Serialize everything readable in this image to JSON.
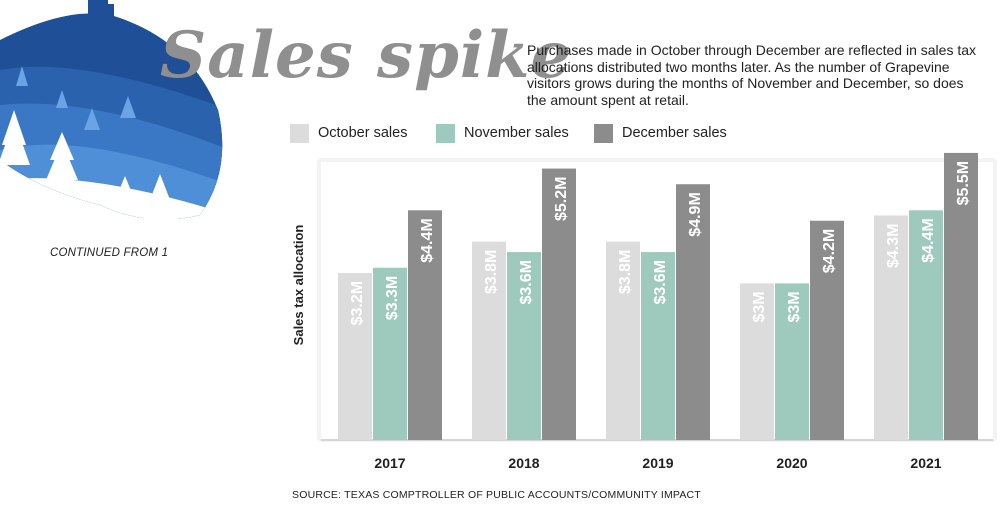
{
  "title": "Sales spike",
  "description": "Purchases made in October through December are reflected in sales tax allocations distributed two months later. As the number of Grapevine visitors grows during the months of November and December, so does the amount spent at retail.",
  "continued": "CONTINUED FROM 1",
  "source": "SOURCE: TEXAS COMPTROLLER OF PUBLIC ACCOUNTS/COMMUNITY IMPACT",
  "colors": {
    "october": "#dcdcdc",
    "november": "#9ec9bd",
    "december": "#8c8c8c",
    "ornament_dark": "#1f4f96",
    "ornament_light": "#3a78c6"
  },
  "chart_data": {
    "type": "bar",
    "categories": [
      "2017",
      "2018",
      "2019",
      "2020",
      "2021"
    ],
    "series": [
      {
        "name": "October sales",
        "values": [
          3.2,
          3.8,
          3.8,
          3.0,
          4.3
        ],
        "labels": [
          "$3.2M",
          "$3.8M",
          "$3.8M",
          "$3M",
          "$4.3M"
        ]
      },
      {
        "name": "November sales",
        "values": [
          3.3,
          3.6,
          3.6,
          3.0,
          4.4
        ],
        "labels": [
          "$3.3M",
          "$3.6M",
          "$3.6M",
          "$3M",
          "$4.4M"
        ]
      },
      {
        "name": "December sales",
        "values": [
          4.4,
          5.2,
          4.9,
          4.2,
          5.5
        ],
        "labels": [
          "$4.4M",
          "$5.2M",
          "$4.9M",
          "$4.2M",
          "$5.5M"
        ]
      }
    ],
    "ylabel": "Sales tax allocation",
    "xlabel": "",
    "ylim": [
      0,
      5.5
    ],
    "legend": "top",
    "grid": false
  }
}
